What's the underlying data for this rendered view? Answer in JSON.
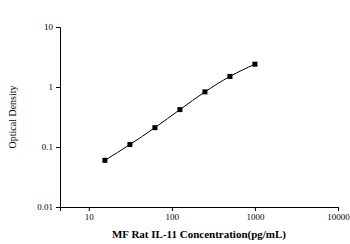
{
  "chart_data": {
    "type": "line",
    "x_label": "MF Rat IL-11 Concentration(pg/mL)",
    "y_label": "Optical Density",
    "x": [
      15.625,
      31.25,
      62.5,
      125,
      250,
      500,
      1000
    ],
    "values": [
      0.06,
      0.11,
      0.21,
      0.42,
      0.83,
      1.5,
      2.4
    ],
    "color": "#000000",
    "marker": "square",
    "line_style": "solid",
    "log": true,
    "grid": false,
    "xlim": [
      4.5,
      10000
    ],
    "xticks": [
      10,
      100,
      1000,
      10000
    ],
    "ylim": [
      0.01,
      10
    ],
    "yticks": [
      0.01,
      0.1,
      1,
      10
    ]
  }
}
